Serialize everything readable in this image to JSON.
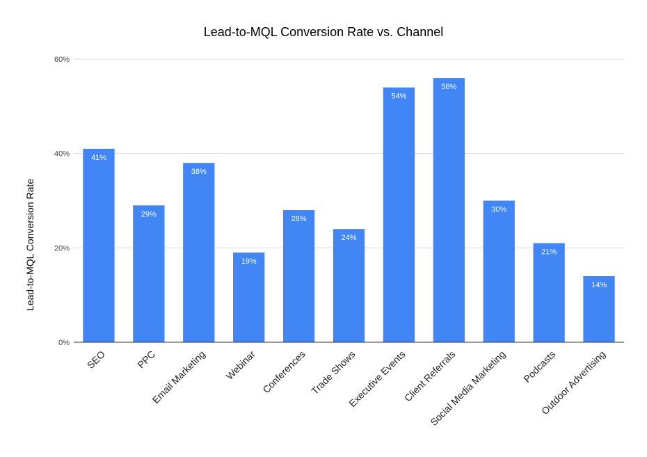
{
  "chart_data": {
    "type": "bar",
    "title": "Lead-to-MQL Conversion Rate vs. Channel",
    "xlabel": "",
    "ylabel": "Lead-to-MQL Conversion Rate",
    "categories": [
      "SEO",
      "PPC",
      "Email Marketing",
      "Webinar",
      "Conferences",
      "Trade Shows",
      "Executive Events",
      "Client Referrals",
      "Social Media Marketing",
      "Podcasts",
      "Outdoor Advertising"
    ],
    "values": [
      41,
      29,
      38,
      19,
      28,
      24,
      54,
      56,
      30,
      21,
      14
    ],
    "data_labels": [
      "41%",
      "29%",
      "38%",
      "19%",
      "28%",
      "24%",
      "54%",
      "56%",
      "30%",
      "21%",
      "14%"
    ],
    "ylim": [
      0,
      60
    ],
    "yticks": [
      0,
      20,
      40,
      60
    ],
    "ytick_labels": [
      "0%",
      "20%",
      "40%",
      "60%"
    ],
    "grid": true,
    "legend": "none",
    "bar_color": "#4285f4"
  }
}
